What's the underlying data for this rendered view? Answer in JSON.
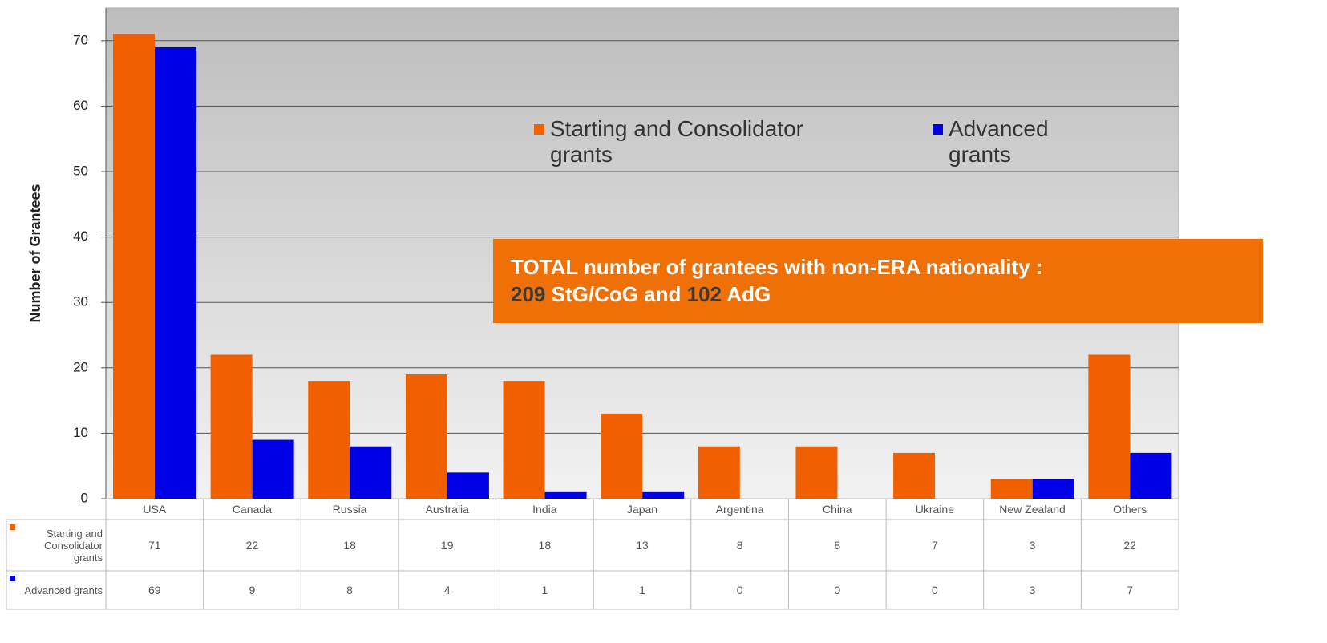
{
  "chart_data": {
    "type": "bar",
    "y_label": "Number of Grantees",
    "categories": [
      "USA",
      "Canada",
      "Russia",
      "Australia",
      "India",
      "Japan",
      "Argentina",
      "China",
      "Ukraine",
      "New Zealand",
      "Others"
    ],
    "series": [
      {
        "name": "Starting and Consolidator grants",
        "color": "#f06000",
        "values": [
          71,
          22,
          18,
          19,
          18,
          13,
          8,
          8,
          7,
          3,
          22
        ]
      },
      {
        "name": "Advanced grants",
        "color": "#0000e6",
        "values": [
          69,
          9,
          8,
          4,
          1,
          1,
          0,
          0,
          0,
          3,
          7
        ]
      }
    ],
    "ylim": [
      0,
      75
    ],
    "yticks": [
      0,
      10,
      20,
      30,
      40,
      50,
      60,
      70
    ],
    "grid": true,
    "annotation": {
      "text": "TOTAL number of grantees with non-ERA nationality :",
      "stg_total": 209,
      "stg_label": "StG/CoG and",
      "adg_total": 102,
      "adg_label": "AdG"
    }
  }
}
